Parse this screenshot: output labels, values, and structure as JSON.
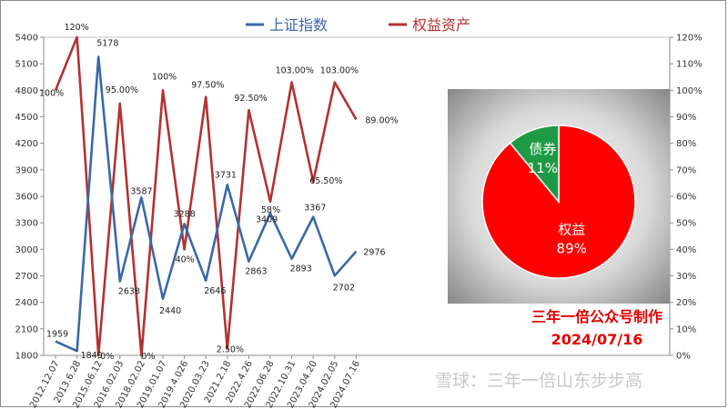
{
  "colors": {
    "index_line": "#3a68a8",
    "equity_line": "#b23232",
    "pie_equity": "#ff0000",
    "pie_bond": "#1e9a44",
    "credit": "#e00000",
    "grid": "#d9d9d9"
  },
  "chart_data": {
    "type": "line",
    "categories": [
      "2012.12.07",
      "2013.6.28",
      "2015.06.12",
      "2016.02.03",
      "2018.02.02",
      "2019.01.07",
      "2019.4.026",
      "2020.03.23",
      "2021.2.18",
      "2022.4.26",
      "2022.06.28",
      "2022.10.31",
      "2023.04.20",
      "2024.02.05",
      "2024.07.16"
    ],
    "y_left": {
      "min": 1800,
      "max": 5400,
      "ticks": [
        1800,
        2100,
        2400,
        2700,
        3000,
        3300,
        3600,
        3900,
        4200,
        4500,
        4800,
        5100,
        5400
      ]
    },
    "y_right": {
      "min": 0,
      "max": 120,
      "ticks": [
        "0%",
        "10%",
        "20%",
        "30%",
        "40%",
        "50%",
        "60%",
        "70%",
        "80%",
        "90%",
        "100%",
        "110%",
        "120%"
      ]
    },
    "legend_position": "top-center",
    "grid": false,
    "series": [
      {
        "name": "上证指数",
        "axis": "left",
        "values": [
          1959,
          1849,
          5178,
          2638,
          3587,
          2440,
          3288,
          2646,
          3731,
          2863,
          3409,
          2893,
          3367,
          2702,
          2976
        ],
        "labels": [
          "1959",
          "1849",
          "5178",
          "2638",
          "3587",
          "2440",
          "3288",
          "2646",
          "3731",
          "2863",
          "3409",
          "2893",
          "3367",
          "2702",
          "2976"
        ]
      },
      {
        "name": "权益资产",
        "axis": "right",
        "values": [
          100,
          120,
          0,
          95,
          0,
          100,
          40,
          97.5,
          2.5,
          92.5,
          58,
          103,
          65.5,
          103,
          89
        ],
        "labels": [
          "100%",
          "120%",
          "0%",
          "95.00%",
          "0%",
          "100%",
          "40%",
          "97.50%",
          "2.50%",
          "92.50%",
          "58%",
          "103.00%",
          "65.50%",
          "103.00%",
          "89.00%"
        ]
      }
    ],
    "inset_pie": {
      "type": "pie",
      "slices": [
        {
          "label": "权益",
          "value": 89,
          "text": "89%"
        },
        {
          "label": "债券",
          "value": 11,
          "text": "11%"
        }
      ]
    }
  },
  "credit": {
    "line1": "三年一倍公众号制作",
    "line2": "2024/07/16"
  },
  "watermark": "雪球：三年一倍山东步步高"
}
